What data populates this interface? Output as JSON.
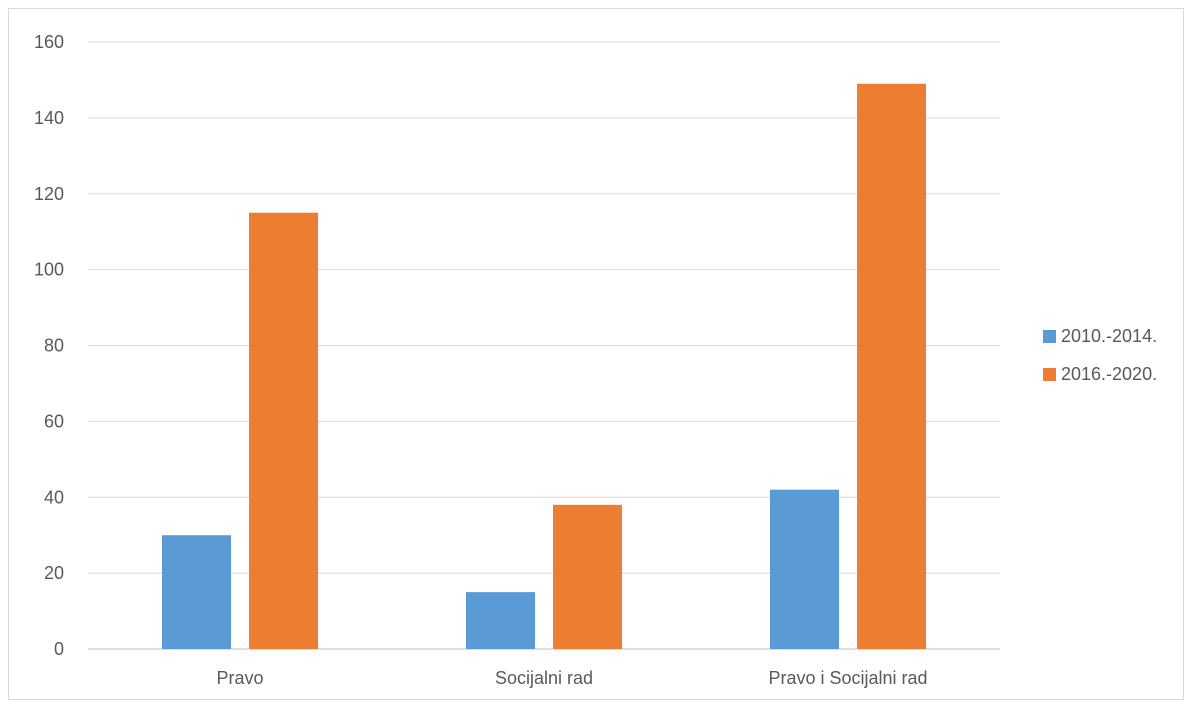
{
  "chart_data": {
    "type": "bar",
    "title": "",
    "xlabel": "",
    "ylabel": "",
    "categories": [
      "Pravo",
      "Socijalni rad",
      "Pravo i Socijalni rad"
    ],
    "series": [
      {
        "name": "2010.-2014.",
        "values": [
          30,
          15,
          42
        ],
        "color": "#5b9bd5"
      },
      {
        "name": "2016.-2020.",
        "values": [
          115,
          38,
          149
        ],
        "color": "#ed7d31"
      }
    ],
    "ylim": [
      0,
      160
    ],
    "yticks": [
      0,
      20,
      40,
      60,
      80,
      100,
      120,
      140,
      160
    ],
    "grid": true,
    "legend_position": "right"
  }
}
